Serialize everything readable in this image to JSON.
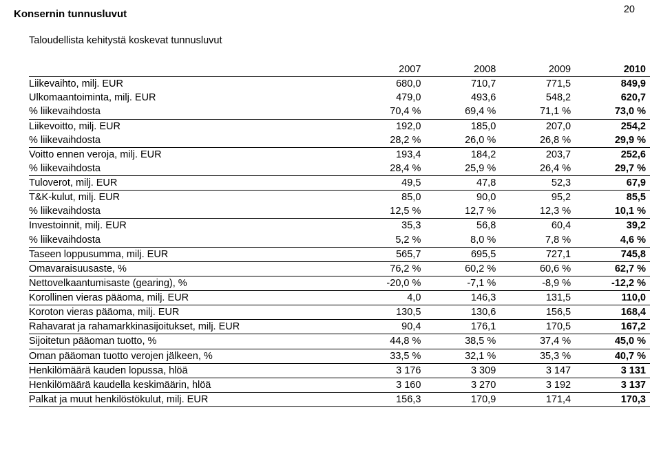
{
  "page_number": "20",
  "heading1": "Konsernin tunnusluvut",
  "heading2": "Taloudellista kehitystä koskevat tunnusluvut",
  "table": {
    "years": [
      "2007",
      "2008",
      "2009",
      "2010"
    ],
    "rows": [
      {
        "label": "Liikevaihto, milj. EUR",
        "vals": [
          "680,0",
          "710,7",
          "771,5",
          "849,9"
        ],
        "underline": false
      },
      {
        "label": "Ulkomaantoiminta, milj. EUR",
        "vals": [
          "479,0",
          "493,6",
          "548,2",
          "620,7"
        ],
        "underline": false
      },
      {
        "label": "% liikevaihdosta",
        "vals": [
          "70,4 %",
          "69,4 %",
          "71,1 %",
          "73,0 %"
        ],
        "underline": true
      },
      {
        "label": "Liikevoitto, milj. EUR",
        "vals": [
          "192,0",
          "185,0",
          "207,0",
          "254,2"
        ],
        "underline": false
      },
      {
        "label": "% liikevaihdosta",
        "vals": [
          "28,2 %",
          "26,0 %",
          "26,8 %",
          "29,9 %"
        ],
        "underline": true
      },
      {
        "label": "Voitto ennen veroja, milj. EUR",
        "vals": [
          "193,4",
          "184,2",
          "203,7",
          "252,6"
        ],
        "underline": false
      },
      {
        "label": "% liikevaihdosta",
        "vals": [
          "28,4 %",
          "25,9 %",
          "26,4 %",
          "29,7 %"
        ],
        "underline": true
      },
      {
        "label": "Tuloverot, milj. EUR",
        "vals": [
          "49,5",
          "47,8",
          "52,3",
          "67,9"
        ],
        "underline": true
      },
      {
        "label": "T&K-kulut, milj. EUR",
        "vals": [
          "85,0",
          "90,0",
          "95,2",
          "85,5"
        ],
        "underline": false
      },
      {
        "label": "% liikevaihdosta",
        "vals": [
          "12,5 %",
          "12,7 %",
          "12,3 %",
          "10,1 %"
        ],
        "underline": true
      },
      {
        "label": "Investoinnit, milj. EUR",
        "vals": [
          "35,3",
          "56,8",
          "60,4",
          "39,2"
        ],
        "underline": false
      },
      {
        "label": "% liikevaihdosta",
        "vals": [
          "5,2 %",
          "8,0 %",
          "7,8 %",
          "4,6 %"
        ],
        "underline": true
      },
      {
        "label": "Taseen loppusumma, milj. EUR",
        "vals": [
          "565,7",
          "695,5",
          "727,1",
          "745,8"
        ],
        "underline": true
      },
      {
        "label": "Omavaraisuusaste, %",
        "vals": [
          "76,2 %",
          "60,2 %",
          "60,6 %",
          "62,7 %"
        ],
        "underline": true
      },
      {
        "label": "Nettovelkaantumisaste (gearing), %",
        "vals": [
          "-20,0 %",
          "-7,1 %",
          "-8,9 %",
          "-12,2 %"
        ],
        "underline": true
      },
      {
        "label": "Korollinen vieras pääoma, milj. EUR",
        "vals": [
          "4,0",
          "146,3",
          "131,5",
          "110,0"
        ],
        "underline": true
      },
      {
        "label": "Koroton vieras pääoma, milj. EUR",
        "vals": [
          "130,5",
          "130,6",
          "156,5",
          "168,4"
        ],
        "underline": true
      },
      {
        "label": "Rahavarat ja rahamarkkinasijoitukset, milj. EUR",
        "vals": [
          "90,4",
          "176,1",
          "170,5",
          "167,2"
        ],
        "underline": true
      },
      {
        "label": "Sijoitetun pääoman tuotto, %",
        "vals": [
          "44,8 %",
          "38,5 %",
          "37,4 %",
          "45,0 %"
        ],
        "underline": true
      },
      {
        "label": "Oman pääoman tuotto verojen jälkeen, %",
        "vals": [
          "33,5 %",
          "32,1 %",
          "35,3 %",
          "40,7 %"
        ],
        "underline": true
      },
      {
        "label": "Henkilömäärä kauden lopussa, hlöä",
        "vals": [
          "3 176",
          "3 309",
          "3 147",
          "3 131"
        ],
        "underline": true
      },
      {
        "label": "Henkilömäärä kaudella keskimäärin, hlöä",
        "vals": [
          "3 160",
          "3 270",
          "3 192",
          "3 137"
        ],
        "underline": true
      },
      {
        "label": "Palkat ja muut henkilöstökulut, milj. EUR",
        "vals": [
          "156,3",
          "170,9",
          "171,4",
          "170,3"
        ],
        "underline": true
      }
    ]
  }
}
